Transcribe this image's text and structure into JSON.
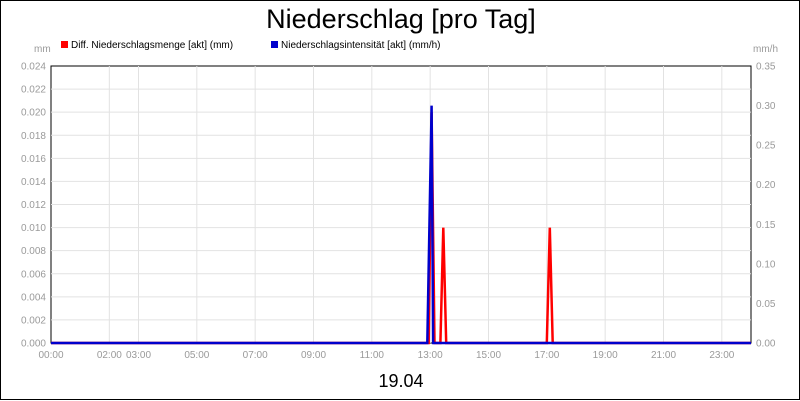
{
  "chart_data": {
    "type": "line",
    "title": "Niederschlag [pro Tag]",
    "date_label": "19.04",
    "y_left_unit": "mm",
    "y_right_unit": "mm/h",
    "x_range_hours": [
      0,
      24
    ],
    "x_tick_labels": [
      "00:00",
      "02:00",
      "03:00",
      "05:00",
      "07:00",
      "09:00",
      "11:00",
      "13:00",
      "15:00",
      "17:00",
      "19:00",
      "21:00",
      "23:00"
    ],
    "x_tick_hours": [
      0,
      2,
      3,
      5,
      7,
      9,
      11,
      13,
      15,
      17,
      19,
      21,
      23
    ],
    "y_left": {
      "range": [
        0,
        0.024
      ],
      "tick_labels": [
        "0.000",
        "0.002",
        "0.004",
        "0.006",
        "0.008",
        "0.010",
        "0.012",
        "0.014",
        "0.016",
        "0.018",
        "0.020",
        "0.022",
        "0.024"
      ]
    },
    "y_right": {
      "range": [
        0,
        0.35
      ],
      "tick_labels": [
        "0.00",
        "0.05",
        "0.10",
        "0.15",
        "0.20",
        "0.25",
        "0.30",
        "0.35"
      ]
    },
    "grid": true,
    "legend_position": "top-left",
    "series": [
      {
        "name": "Diff. Niederschlagsmenge [akt] (mm)",
        "axis": "left",
        "color": "#ff0000",
        "points": [
          [
            0,
            0
          ],
          [
            12.95,
            0
          ],
          [
            13.05,
            0.02
          ],
          [
            13.15,
            0
          ],
          [
            13.35,
            0
          ],
          [
            13.45,
            0.01
          ],
          [
            13.55,
            0
          ],
          [
            17.0,
            0
          ],
          [
            17.1,
            0.01
          ],
          [
            17.2,
            0
          ],
          [
            24,
            0
          ]
        ]
      },
      {
        "name": "Niederschlagsintensität [akt] (mm/h)",
        "axis": "right",
        "color": "#0000cc",
        "points": [
          [
            0,
            0
          ],
          [
            12.9,
            0
          ],
          [
            13.05,
            0.3
          ],
          [
            13.1,
            0
          ],
          [
            24,
            0
          ]
        ]
      }
    ]
  }
}
